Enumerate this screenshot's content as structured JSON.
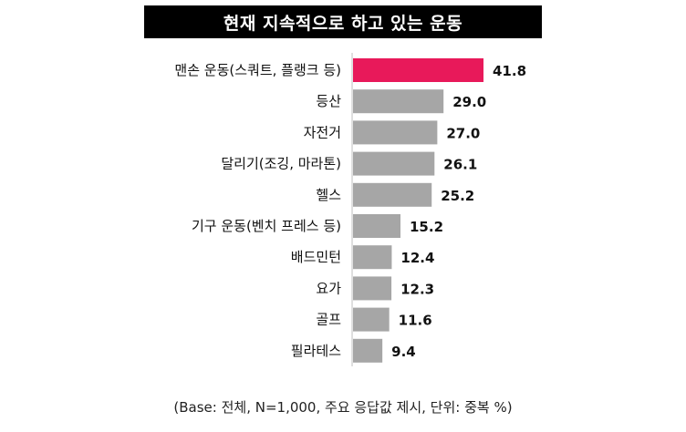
{
  "title": "현재 지속적으로 하고 있는 운동",
  "footnote": "(Base: 전체, N=1,000, 주요 응답값 제시, 단위: 중복 %)",
  "colors": {
    "highlight": "#e8195a",
    "bar": "#a6a6a6",
    "axis": "#bfbfbf"
  },
  "chart_data": {
    "type": "bar",
    "orientation": "horizontal",
    "categories": [
      "맨손 운동(스쿼트, 플랭크 등)",
      "등산",
      "자전거",
      "달리기(조깅, 마라톤)",
      "헬스",
      "기구 운동(벤치 프레스 등)",
      "배드민턴",
      "요가",
      "골프",
      "필라테스"
    ],
    "values": [
      41.8,
      29.0,
      27.0,
      26.1,
      25.2,
      15.2,
      12.4,
      12.3,
      11.6,
      9.4
    ],
    "value_labels": [
      "41.8",
      "29.0",
      "27.0",
      "26.1",
      "25.2",
      "15.2",
      "12.4",
      "12.3",
      "11.6",
      "9.4"
    ],
    "highlight_index": 0,
    "title": "현재 지속적으로 하고 있는 운동",
    "xlim": [
      0,
      41.8
    ]
  }
}
